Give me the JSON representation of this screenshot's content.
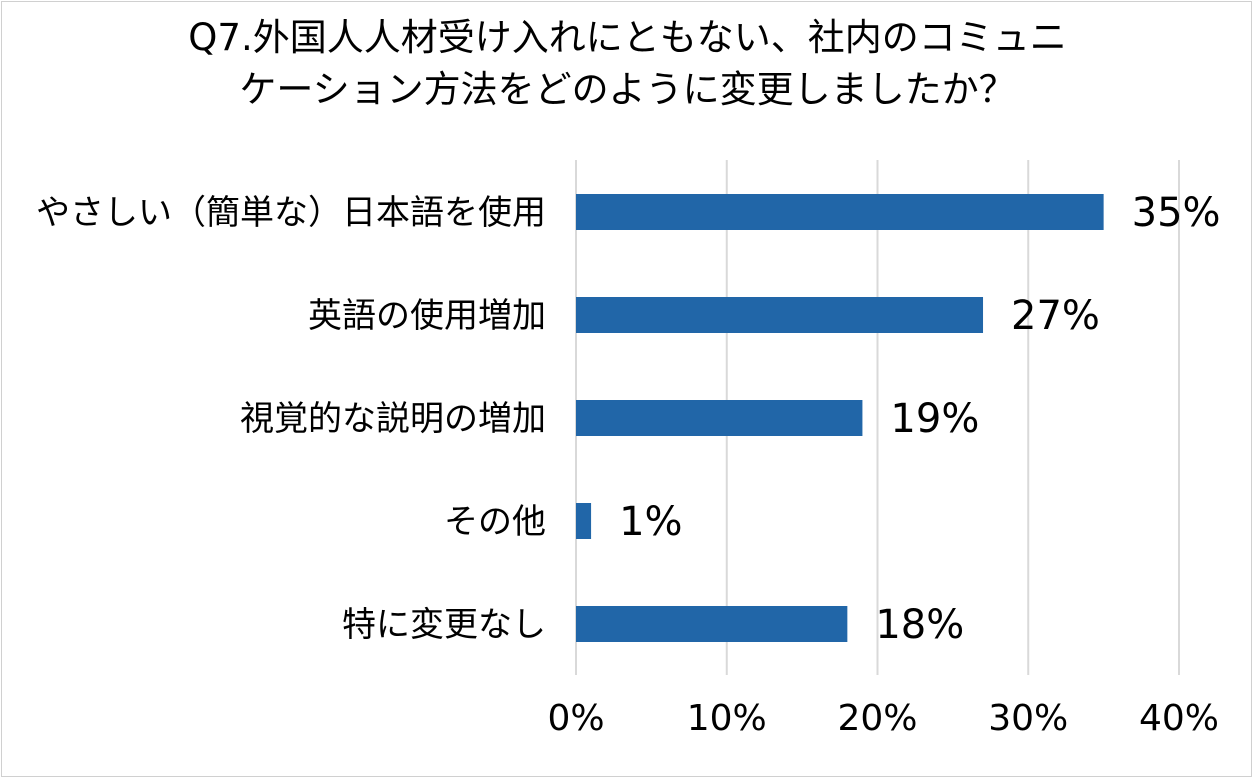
{
  "chart_data": {
    "type": "bar",
    "orientation": "horizontal",
    "title_lines": [
      "Q7.外国人人材受け入れにともない、社内のコミュニ",
      "ケーション方法をどのように変更しましたか？"
    ],
    "categories": [
      "やさしい（簡単な）日本語を使用",
      "英語の使用増加",
      "視覚的な説明の増加",
      "その他",
      "特に変更なし"
    ],
    "values": [
      35,
      27,
      19,
      1,
      18
    ],
    "value_labels": [
      "35%",
      "27%",
      "19%",
      "1%",
      "18%"
    ],
    "x_ticks": [
      "0%",
      "10%",
      "20%",
      "30%",
      "40%"
    ],
    "xlim": [
      0,
      40
    ],
    "grid": true,
    "bar_color": "#2166a8",
    "grid_color": "#d9d9d9",
    "xlabel": "",
    "ylabel": ""
  }
}
